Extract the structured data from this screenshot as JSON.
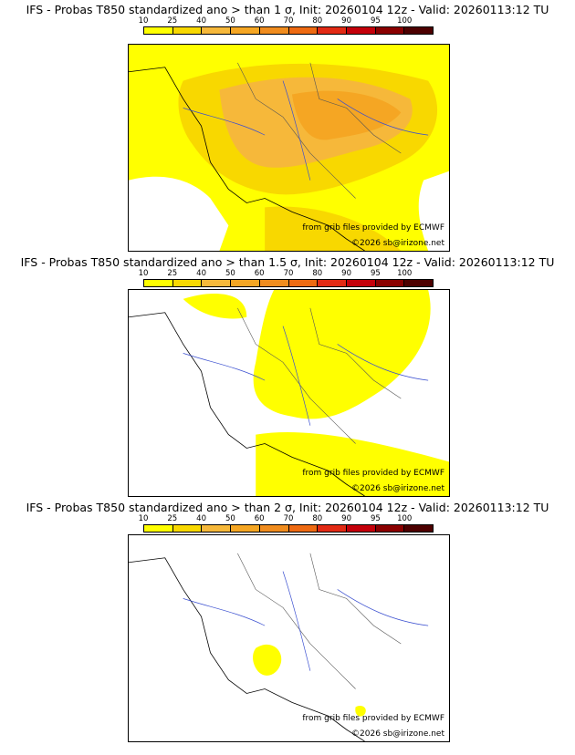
{
  "colorbar": {
    "ticks": [
      "10",
      "25",
      "40",
      "50",
      "60",
      "70",
      "80",
      "90",
      "95",
      "100"
    ],
    "colors": [
      "#ffff00",
      "#f8d800",
      "#f6b83a",
      "#f5a623",
      "#f08c1e",
      "#ee6a12",
      "#e22a14",
      "#c4000a",
      "#8a0000",
      "#4d0000"
    ]
  },
  "panels": [
    {
      "title": "IFS - Probas T850  standardized ano > than 1 σ, Init: 20260104 12z - Valid: 20260113:12 TU"
    },
    {
      "title": "IFS - Probas T850  standardized ano > than 1.5 σ, Init: 20260104 12z - Valid: 20260113:12 TU"
    },
    {
      "title": "IFS - Probas T850  standardized ano > than 2 σ, Init: 20260104 12z - Valid: 20260113:12 TU"
    }
  ],
  "credits": {
    "source": "from grib files provided by ECMWF",
    "copyright": "©2026 sb@irizone.net"
  }
}
